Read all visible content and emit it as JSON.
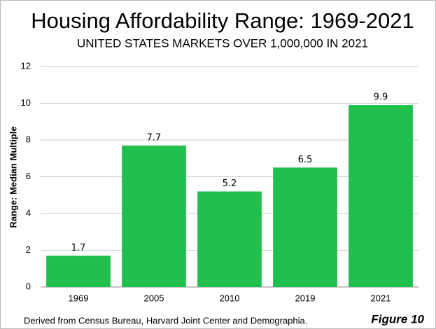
{
  "chart_data": {
    "type": "bar",
    "title": "Housing Affordability Range: 1969-2021",
    "subtitle": "UNITED STATES MARKETS OVER 1,000,000 IN 2021",
    "y_label": "Range: Median Multiple",
    "categories": [
      "1969",
      "2005",
      "2010",
      "2019",
      "2021"
    ],
    "values": [
      1.7,
      7.7,
      5.2,
      6.5,
      9.9
    ],
    "color": "#21c04e",
    "ylim": [
      0,
      12
    ],
    "yticks": [
      0,
      2,
      4,
      6,
      8,
      10,
      12
    ],
    "grid": true,
    "source": "Derived from Census Bureau, Harvard Joint Center and Demographia.",
    "figure_label": "Figure 10"
  }
}
